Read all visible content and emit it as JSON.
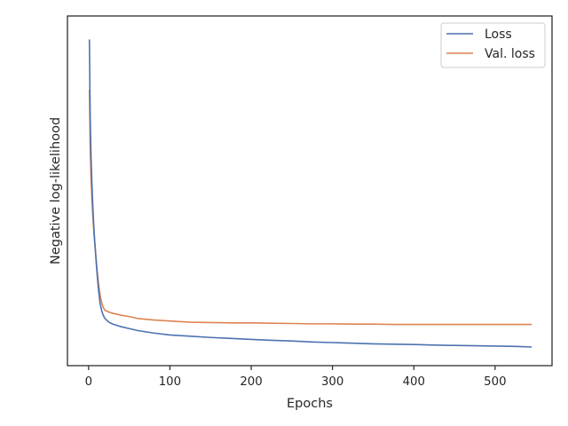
{
  "chart_data": {
    "type": "line",
    "title": "",
    "xlabel": "Epochs",
    "ylabel": "Negative log-likelihood",
    "xlim": [
      -26,
      570
    ],
    "ylim": [
      0,
      1
    ],
    "xticks": [
      0,
      100,
      200,
      300,
      400,
      500
    ],
    "yticks": [],
    "grid": false,
    "legend": {
      "placement": "top-right",
      "entries": [
        "Loss",
        "Val. loss"
      ]
    },
    "series": [
      {
        "name": "Loss",
        "color": "#4c72b0",
        "x": [
          1,
          2,
          3,
          4,
          5,
          6,
          7,
          8,
          10,
          12,
          14,
          16,
          18,
          20,
          25,
          30,
          40,
          50,
          60,
          80,
          100,
          125,
          150,
          175,
          200,
          225,
          250,
          275,
          300,
          325,
          350,
          375,
          400,
          425,
          450,
          475,
          500,
          525,
          545
        ],
        "y": [
          0.968,
          0.72,
          0.6,
          0.52,
          0.455,
          0.4,
          0.355,
          0.315,
          0.245,
          0.185,
          0.14,
          0.115,
          0.1,
          0.09,
          0.078,
          0.072,
          0.064,
          0.058,
          0.052,
          0.044,
          0.038,
          0.034,
          0.03,
          0.027,
          0.024,
          0.021,
          0.019,
          0.016,
          0.014,
          0.012,
          0.01,
          0.009,
          0.008,
          0.006,
          0.005,
          0.004,
          0.003,
          0.002,
          0.0
        ]
      },
      {
        "name": "Val. loss",
        "color": "#dd8452",
        "x": [
          1,
          2,
          3,
          4,
          5,
          6,
          7,
          8,
          10,
          12,
          14,
          16,
          18,
          20,
          25,
          30,
          40,
          50,
          60,
          80,
          100,
          125,
          150,
          175,
          200,
          225,
          250,
          275,
          300,
          325,
          350,
          375,
          400,
          425,
          450,
          475,
          500,
          525,
          545
        ],
        "y": [
          0.81,
          0.62,
          0.53,
          0.47,
          0.42,
          0.38,
          0.345,
          0.315,
          0.255,
          0.205,
          0.165,
          0.14,
          0.125,
          0.116,
          0.11,
          0.106,
          0.1,
          0.096,
          0.09,
          0.085,
          0.082,
          0.078,
          0.077,
          0.076,
          0.076,
          0.075,
          0.074,
          0.073,
          0.073,
          0.072,
          0.072,
          0.071,
          0.071,
          0.071,
          0.071,
          0.071,
          0.071,
          0.071,
          0.071
        ]
      }
    ]
  }
}
